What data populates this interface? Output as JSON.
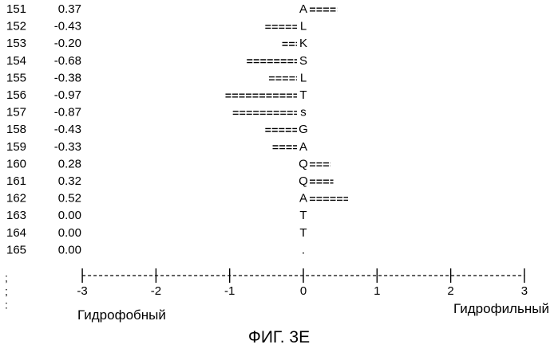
{
  "chart_data": {
    "type": "bar",
    "orientation": "horizontal",
    "rows": [
      {
        "position": "151",
        "value": 0.37,
        "value_text": "0.37",
        "residue": "A"
      },
      {
        "position": "152",
        "value": -0.43,
        "value_text": "-0.43",
        "residue": "L"
      },
      {
        "position": "153",
        "value": -0.2,
        "value_text": "-0.20",
        "residue": "K"
      },
      {
        "position": "154",
        "value": -0.68,
        "value_text": "-0.68",
        "residue": "S"
      },
      {
        "position": "155",
        "value": -0.38,
        "value_text": "-0.38",
        "residue": "L"
      },
      {
        "position": "156",
        "value": -0.97,
        "value_text": "-0.97",
        "residue": "T"
      },
      {
        "position": "157",
        "value": -0.87,
        "value_text": "-0.87",
        "residue": "s"
      },
      {
        "position": "158",
        "value": -0.43,
        "value_text": "-0.43",
        "residue": "G"
      },
      {
        "position": "159",
        "value": -0.33,
        "value_text": "-0.33",
        "residue": "A"
      },
      {
        "position": "160",
        "value": 0.28,
        "value_text": "0.28",
        "residue": "Q"
      },
      {
        "position": "161",
        "value": 0.32,
        "value_text": "0.32",
        "residue": "Q"
      },
      {
        "position": "162",
        "value": 0.52,
        "value_text": "0.52",
        "residue": "A"
      },
      {
        "position": "163",
        "value": 0.0,
        "value_text": "0.00",
        "residue": "T"
      },
      {
        "position": "164",
        "value": 0.0,
        "value_text": "0.00",
        "residue": "T"
      },
      {
        "position": "165",
        "value": 0.0,
        "value_text": "0.00",
        "residue": "."
      }
    ],
    "xlim": [
      -3,
      3
    ],
    "x_ticks": [
      {
        "value": -3,
        "label": "-3"
      },
      {
        "value": -2,
        "label": "-2"
      },
      {
        "value": -1,
        "label": "-1"
      },
      {
        "value": 0,
        "label": "0"
      },
      {
        "value": 1,
        "label": "1"
      },
      {
        "value": 2,
        "label": "2"
      },
      {
        "value": 3,
        "label": "3"
      }
    ],
    "left_axis_label": "Гидрофобный",
    "right_axis_label": "Гидрофильный",
    "margin_marks": [
      ";",
      ";",
      ":"
    ],
    "grid": false
  },
  "figure_caption": "ФИГ. 3Е"
}
